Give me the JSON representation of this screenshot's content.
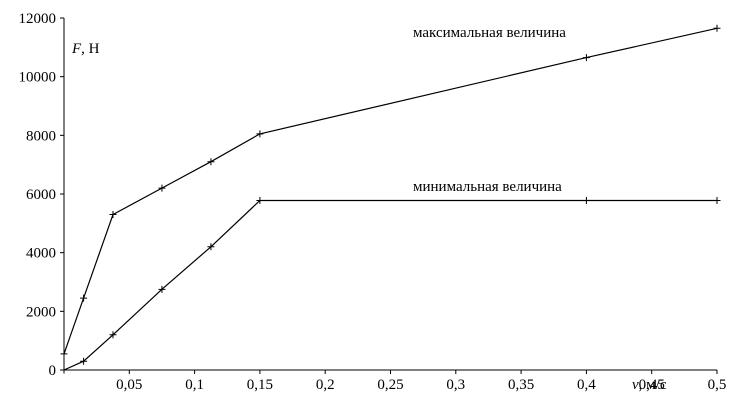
{
  "chart_data": {
    "type": "line",
    "title": "",
    "y_axis_label": {
      "symbol": "F",
      "unit": ", Н"
    },
    "x_axis_label": {
      "symbol": "v",
      "unit": ", м/с"
    },
    "xlim": [
      0,
      0.5
    ],
    "ylim": [
      0,
      12000
    ],
    "x_ticks": [
      0.05,
      0.1,
      0.15,
      0.2,
      0.25,
      0.3,
      0.35,
      0.4,
      0.45,
      0.5
    ],
    "x_tick_labels": [
      "0,05",
      "0,1",
      "0,15",
      "0,2",
      "0,25",
      "0,3",
      "0,35",
      "0,4",
      "0,45",
      "0,5"
    ],
    "y_ticks": [
      0,
      2000,
      4000,
      6000,
      8000,
      10000,
      12000
    ],
    "y_tick_labels": [
      "0",
      "2000",
      "4000",
      "6000",
      "8000",
      "10000",
      "12000"
    ],
    "grid": false,
    "legend": "none",
    "series": [
      {
        "name": "максимальная величина",
        "x": [
          0,
          0.015,
          0.0375,
          0.075,
          0.1125,
          0.15,
          0.4,
          0.5
        ],
        "y": [
          550,
          2450,
          5300,
          6200,
          7100,
          8050,
          10650,
          11650
        ]
      },
      {
        "name": "минимальная величина",
        "x": [
          0,
          0.015,
          0.0375,
          0.075,
          0.1125,
          0.15,
          0.4,
          0.5
        ],
        "y": [
          0,
          300,
          1200,
          2750,
          4200,
          5780,
          5780,
          5780
        ]
      }
    ]
  }
}
